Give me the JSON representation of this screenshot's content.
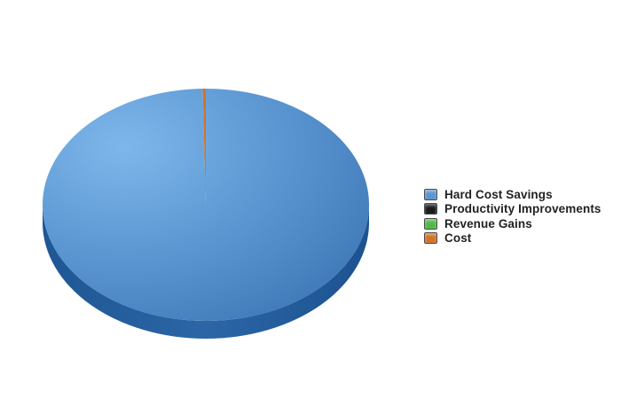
{
  "chart_data": {
    "type": "pie",
    "title": "",
    "categories": [
      "Hard Cost Savings",
      "Productivity Improvements",
      "Revenue Gains",
      "Cost"
    ],
    "values": [
      99.7,
      0,
      0,
      0.3
    ],
    "colors": [
      "#5b95d1",
      "#1a1a1a",
      "#52b84a",
      "#d2732a"
    ],
    "legend_position": "right",
    "style": "3d"
  }
}
